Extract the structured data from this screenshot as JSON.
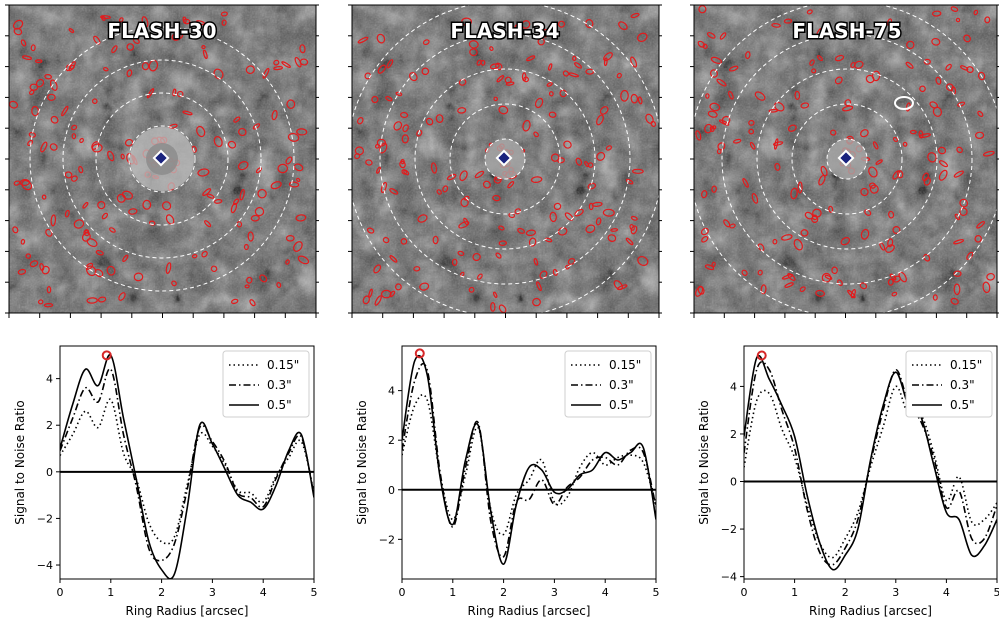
{
  "panels": [
    {
      "title": "FLASH-30",
      "chart_data": {
        "type": "line",
        "xlabel": "Ring Radius [arcsec]",
        "ylabel": "Signal to Noise Ratio",
        "xlim": [
          0,
          5
        ],
        "ylim": [
          -4.6,
          5.4
        ],
        "xticks": [
          0,
          1,
          2,
          3,
          4,
          5
        ],
        "yticks": [
          -4,
          -2,
          0,
          2,
          4
        ],
        "legend": "top-right",
        "peak_marker": {
          "x": 0.92,
          "y": 5.0,
          "color": "#d62728"
        },
        "x": [
          0,
          0.25,
          0.5,
          0.75,
          1.0,
          1.25,
          1.5,
          1.75,
          2.0,
          2.25,
          2.5,
          2.75,
          3.0,
          3.25,
          3.5,
          3.75,
          4.0,
          4.25,
          4.5,
          4.75,
          5.0
        ],
        "series": [
          {
            "name": "0.15\"",
            "style": "dotted",
            "values": [
              0.7,
              1.6,
              2.6,
              1.9,
              3.1,
              0.8,
              -0.3,
              -2.2,
              -3.0,
              -2.8,
              -0.6,
              1.6,
              1.1,
              0.3,
              -0.8,
              -0.9,
              -1.3,
              -0.2,
              0.6,
              1.3,
              -0.9
            ]
          },
          {
            "name": "0.3\"",
            "style": "dashdot",
            "values": [
              0.9,
              2.3,
              3.6,
              3.0,
              4.4,
              1.6,
              -0.6,
              -3.3,
              -3.8,
              -3.1,
              -0.8,
              1.9,
              1.3,
              0.4,
              -0.9,
              -1.1,
              -1.5,
              -0.3,
              0.8,
              1.5,
              -1.0
            ]
          },
          {
            "name": "0.5\"",
            "style": "solid",
            "values": [
              1.0,
              2.9,
              4.4,
              3.7,
              5.0,
              2.3,
              -0.3,
              -3.0,
              -4.2,
              -4.4,
              -1.6,
              2.0,
              1.2,
              0.1,
              -1.0,
              -1.3,
              -1.6,
              -0.6,
              0.9,
              1.6,
              -1.1
            ]
          }
        ]
      }
    },
    {
      "title": "FLASH-34",
      "chart_data": {
        "type": "line",
        "xlabel": "Ring Radius [arcsec]",
        "ylabel": "Signal to Noise Ratio",
        "xlim": [
          0,
          5
        ],
        "ylim": [
          -3.6,
          5.8
        ],
        "xticks": [
          0,
          1,
          2,
          3,
          4,
          5
        ],
        "yticks": [
          -2,
          0,
          2,
          4
        ],
        "legend": "top-right",
        "peak_marker": {
          "x": 0.35,
          "y": 5.5,
          "color": "#d62728"
        },
        "x": [
          0,
          0.25,
          0.5,
          0.75,
          1.0,
          1.25,
          1.5,
          1.75,
          2.0,
          2.25,
          2.5,
          2.75,
          3.0,
          3.25,
          3.5,
          3.75,
          4.0,
          4.25,
          4.5,
          4.75,
          5.0
        ],
        "series": [
          {
            "name": "0.15\"",
            "style": "dotted",
            "values": [
              1.4,
              3.4,
              3.6,
              0.6,
              -1.2,
              0.6,
              2.5,
              -0.8,
              -1.8,
              -0.2,
              0.4,
              1.2,
              -0.5,
              -0.3,
              0.9,
              1.5,
              1.0,
              1.3,
              1.4,
              1.1,
              -0.6
            ]
          },
          {
            "name": "0.3\"",
            "style": "dashdot",
            "values": [
              1.6,
              4.4,
              4.8,
              0.7,
              -1.5,
              0.9,
              2.7,
              -1.3,
              -2.7,
              -0.5,
              -0.4,
              0.4,
              -0.6,
              0.1,
              0.5,
              1.2,
              1.3,
              1.0,
              1.6,
              1.5,
              -0.7
            ]
          },
          {
            "name": "0.5\"",
            "style": "solid",
            "values": [
              2.0,
              5.2,
              4.6,
              0.5,
              -1.4,
              1.2,
              2.6,
              -0.9,
              -3.0,
              -0.6,
              0.9,
              0.8,
              -0.1,
              0.0,
              0.6,
              0.8,
              1.5,
              1.2,
              1.5,
              1.7,
              -1.2
            ]
          }
        ]
      }
    },
    {
      "title": "FLASH-75",
      "chart_data": {
        "type": "line",
        "xlabel": "Ring Radius [arcsec]",
        "ylabel": "Signal to Noise Ratio",
        "xlim": [
          0,
          5
        ],
        "ylim": [
          -4.1,
          5.7
        ],
        "xticks": [
          0,
          1,
          2,
          3,
          4,
          5
        ],
        "yticks": [
          -4,
          -2,
          0,
          2,
          4
        ],
        "legend": "top-right",
        "peak_marker": {
          "x": 0.35,
          "y": 5.3,
          "color": "#d62728"
        },
        "x": [
          0,
          0.25,
          0.5,
          0.75,
          1.0,
          1.25,
          1.5,
          1.75,
          2.0,
          2.25,
          2.5,
          2.75,
          3.0,
          3.25,
          3.5,
          3.75,
          4.0,
          4.25,
          4.5,
          4.75,
          5.0
        ],
        "series": [
          {
            "name": "0.15\"",
            "style": "dotted",
            "values": [
              0.6,
              3.4,
              3.7,
              2.2,
              1.0,
              -1.0,
              -2.6,
              -3.2,
              -2.4,
              -1.3,
              0.6,
              2.3,
              4.0,
              2.8,
              2.8,
              1.2,
              -0.8,
              0.2,
              -1.7,
              -1.6,
              -0.9
            ]
          },
          {
            "name": "0.3\"",
            "style": "dashdot",
            "values": [
              1.2,
              4.7,
              4.7,
              3.0,
              1.4,
              -1.2,
              -3.0,
              -3.5,
              -2.8,
              -1.6,
              0.8,
              3.0,
              4.7,
              3.3,
              2.5,
              1.0,
              -1.1,
              -0.4,
              -2.4,
              -2.4,
              -1.0
            ]
          },
          {
            "name": "0.5\"",
            "style": "solid",
            "values": [
              1.9,
              5.2,
              4.3,
              3.2,
              1.9,
              -0.6,
              -2.6,
              -3.7,
              -3.1,
              -2.0,
              0.9,
              3.2,
              4.6,
              3.2,
              2.7,
              0.7,
              -1.3,
              -1.6,
              -3.1,
              -2.7,
              -1.6
            ]
          }
        ]
      }
    }
  ],
  "colors": {
    "contour": "#e31a1c",
    "ring": "#ffffff",
    "marker": "#1a237e",
    "line": "#000000",
    "peak": "#d62728"
  }
}
